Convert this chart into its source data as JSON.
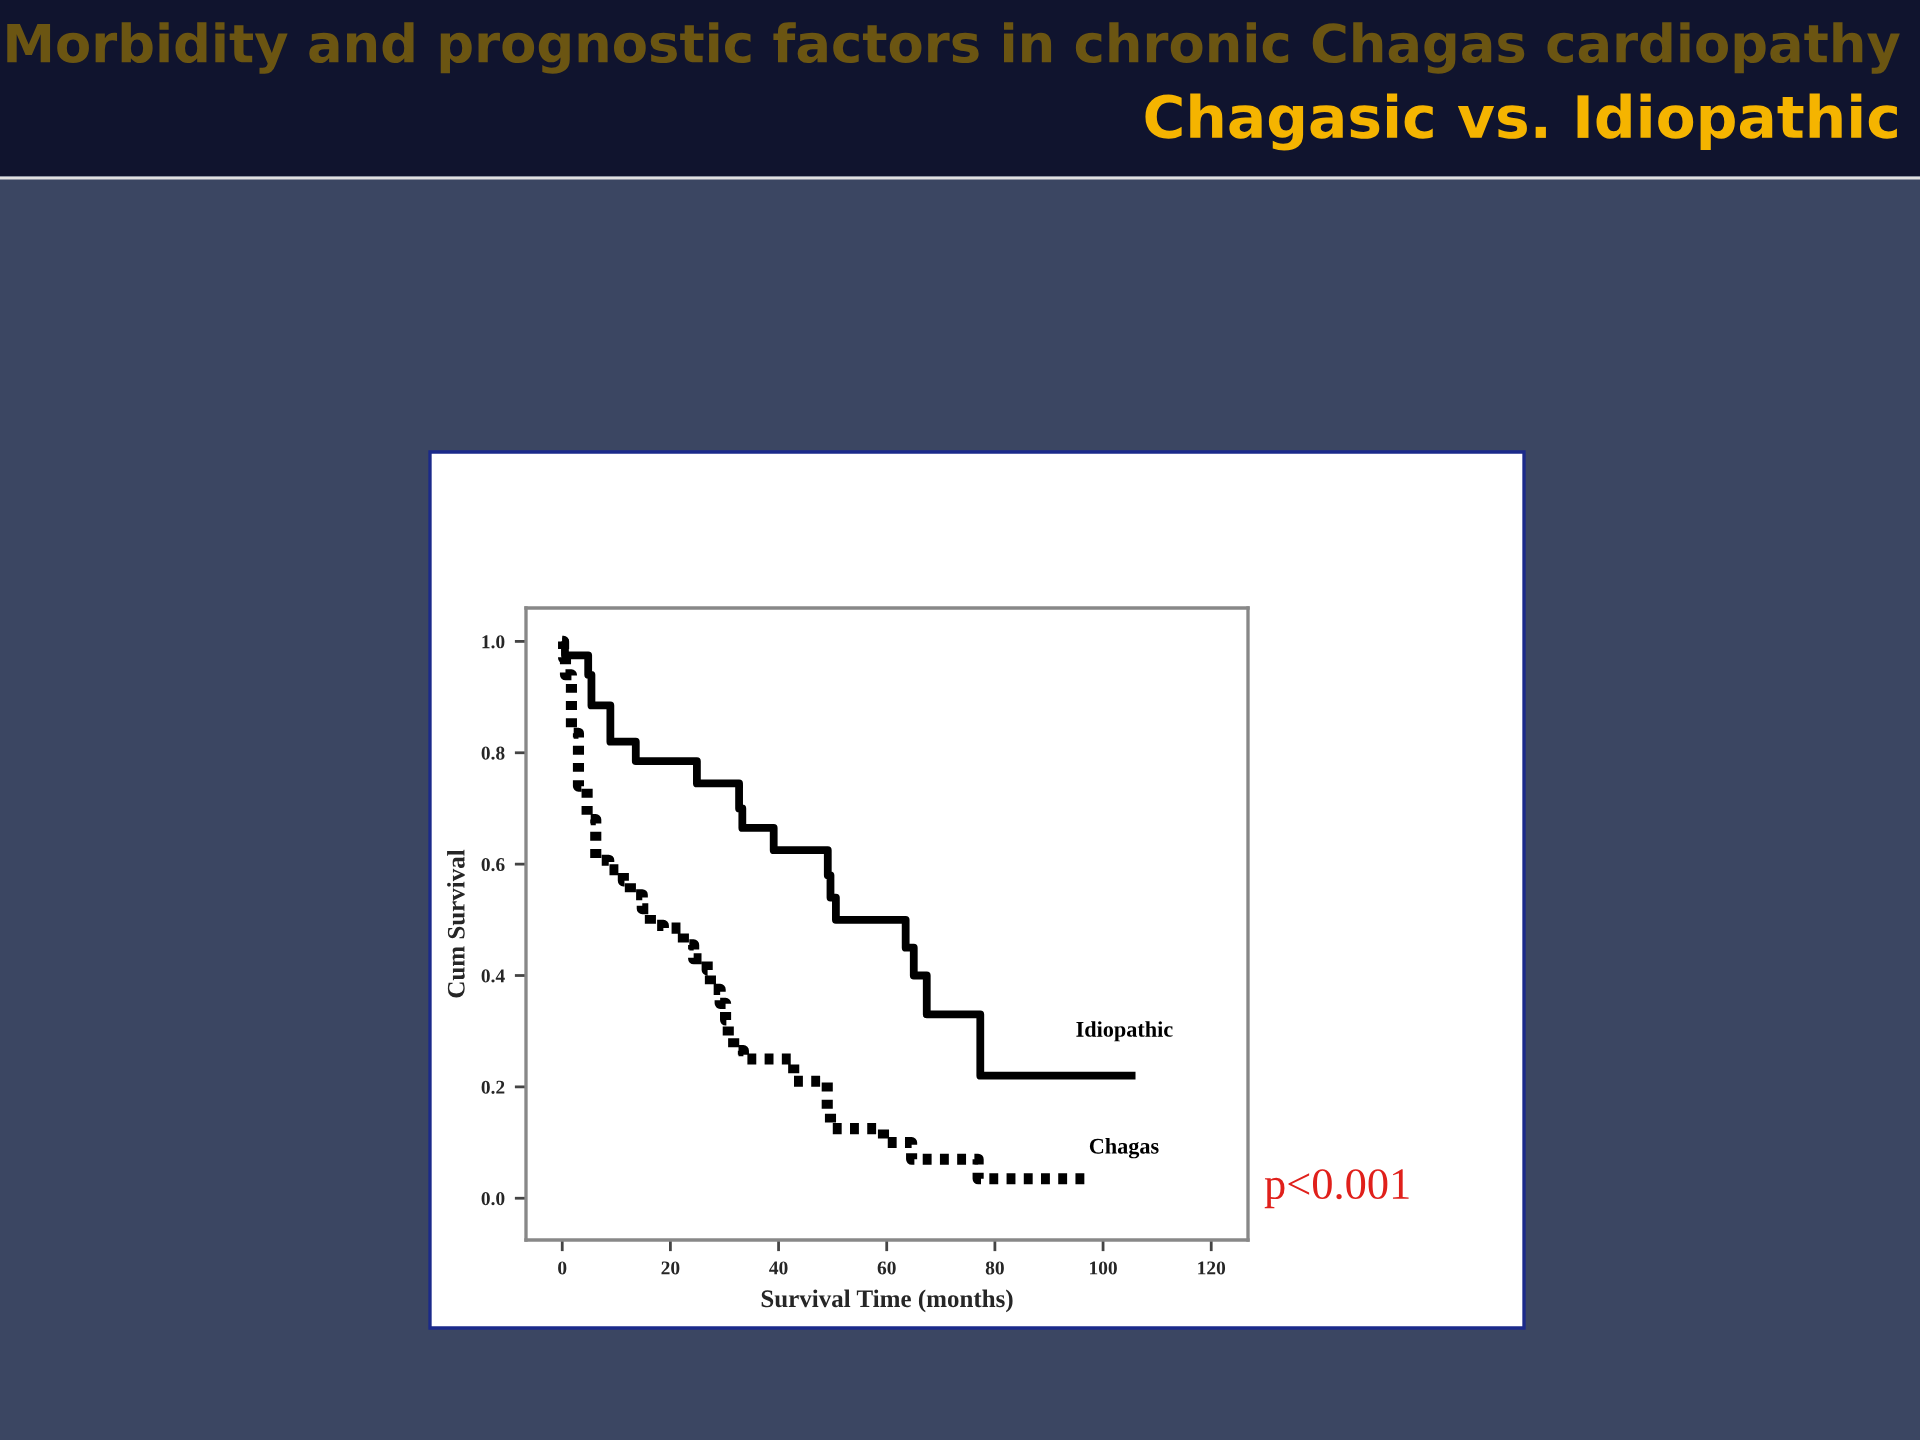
{
  "chart_data": {
    "type": "step",
    "title": "Morbidity and prognostic factors in chronic Chagas cardiopathy",
    "subtitle": "Chagasic vs. Idiopathic",
    "xlabel": "Survival Time (months)",
    "ylabel": "Cum Survival",
    "xlim": [
      -6.7,
      126.8
    ],
    "ylim": [
      -0.075,
      1.06
    ],
    "xticks": [
      0,
      20,
      40,
      60,
      80,
      100,
      120
    ],
    "yticks": [
      {
        "value": 0,
        "label": "0.0"
      },
      {
        "value": 0.2,
        "label": "0.2"
      },
      {
        "value": 0.4,
        "label": "0.4"
      },
      {
        "value": 0.6,
        "label": "0.6"
      },
      {
        "value": 0.8,
        "label": "0.8"
      },
      {
        "value": 1.0,
        "label": "1.0"
      }
    ],
    "grid": false,
    "legend": false,
    "annotations": [
      "p<0.001"
    ],
    "series": [
      {
        "name": "Idiopathic",
        "color": "#000000",
        "line_style": "solid",
        "x": [
          0,
          0.5,
          4.8,
          5.4,
          8.9,
          13.6,
          24.9,
          32.7,
          33.3,
          39.1,
          49.1,
          49.6,
          50.6,
          63.5,
          65.0,
          67.4,
          77.3,
          106
        ],
        "values": [
          1.0,
          0.975,
          0.94,
          0.885,
          0.82,
          0.785,
          0.745,
          0.7,
          0.665,
          0.625,
          0.58,
          0.54,
          0.5,
          0.45,
          0.4,
          0.33,
          0.22,
          0.22
        ]
      },
      {
        "name": "Chagas",
        "color": "#000000",
        "line_style": "dotted",
        "x": [
          0,
          0.25,
          0.6,
          1.7,
          3.0,
          4.6,
          6.2,
          8.6,
          11.3,
          12.6,
          14.8,
          16.3,
          18.7,
          22.4,
          24.3,
          26.8,
          27.4,
          29.2,
          30.2,
          30.7,
          31.7,
          33.5,
          42.8,
          49.0,
          49.6,
          59.4,
          64.6,
          76.9,
          97.7
        ],
        "values": [
          1.0,
          0.97,
          0.94,
          0.835,
          0.74,
          0.68,
          0.607,
          0.59,
          0.57,
          0.545,
          0.52,
          0.49,
          0.485,
          0.455,
          0.43,
          0.41,
          0.375,
          0.35,
          0.32,
          0.29,
          0.265,
          0.25,
          0.21,
          0.155,
          0.125,
          0.1,
          0.07,
          0.035,
          0.035
        ]
      }
    ]
  }
}
